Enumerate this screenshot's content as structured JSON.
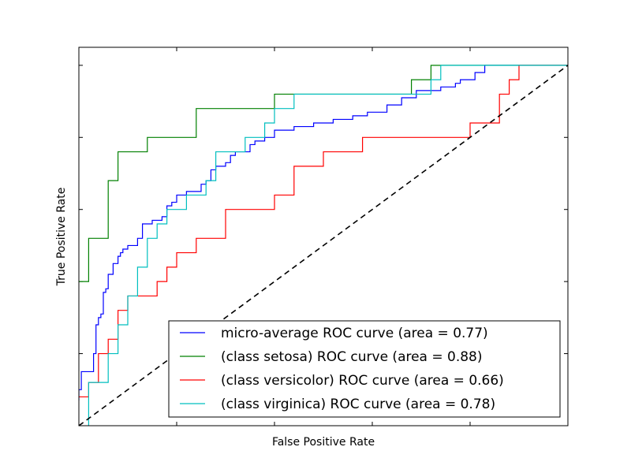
{
  "chart_data": {
    "type": "line",
    "title": "",
    "xlabel": "False Positive Rate",
    "ylabel": "True Positive Rate",
    "xlim": [
      0,
      1
    ],
    "ylim": [
      0,
      1.05
    ],
    "grid": false,
    "tick_labels_visible": false,
    "legend_position": "lower-right",
    "x_ticks": [
      0.2,
      0.4,
      0.6,
      0.8
    ],
    "y_ticks": [
      0.2,
      0.4,
      0.6,
      0.8,
      1.0
    ],
    "series": [
      {
        "name": "micro-average ROC curve (area = 0.77)",
        "color": "#0000ff",
        "points": [
          [
            0,
            0.07
          ],
          [
            0,
            0.1
          ],
          [
            0.005,
            0.1
          ],
          [
            0.005,
            0.15
          ],
          [
            0.03,
            0.15
          ],
          [
            0.03,
            0.2
          ],
          [
            0.035,
            0.2
          ],
          [
            0.035,
            0.28
          ],
          [
            0.04,
            0.28
          ],
          [
            0.04,
            0.3
          ],
          [
            0.045,
            0.3
          ],
          [
            0.045,
            0.31
          ],
          [
            0.05,
            0.31
          ],
          [
            0.05,
            0.37
          ],
          [
            0.055,
            0.37
          ],
          [
            0.055,
            0.38
          ],
          [
            0.06,
            0.38
          ],
          [
            0.06,
            0.42
          ],
          [
            0.07,
            0.42
          ],
          [
            0.07,
            0.45
          ],
          [
            0.08,
            0.45
          ],
          [
            0.08,
            0.47
          ],
          [
            0.085,
            0.47
          ],
          [
            0.085,
            0.48
          ],
          [
            0.09,
            0.48
          ],
          [
            0.09,
            0.49
          ],
          [
            0.1,
            0.49
          ],
          [
            0.1,
            0.5
          ],
          [
            0.12,
            0.5
          ],
          [
            0.12,
            0.52
          ],
          [
            0.13,
            0.52
          ],
          [
            0.13,
            0.56
          ],
          [
            0.15,
            0.56
          ],
          [
            0.15,
            0.57
          ],
          [
            0.17,
            0.57
          ],
          [
            0.17,
            0.58
          ],
          [
            0.18,
            0.58
          ],
          [
            0.18,
            0.61
          ],
          [
            0.19,
            0.61
          ],
          [
            0.19,
            0.62
          ],
          [
            0.2,
            0.62
          ],
          [
            0.2,
            0.63
          ],
          [
            0.2,
            0.64
          ],
          [
            0.22,
            0.64
          ],
          [
            0.22,
            0.65
          ],
          [
            0.25,
            0.65
          ],
          [
            0.25,
            0.67
          ],
          [
            0.26,
            0.67
          ],
          [
            0.26,
            0.68
          ],
          [
            0.27,
            0.68
          ],
          [
            0.27,
            0.71
          ],
          [
            0.28,
            0.71
          ],
          [
            0.28,
            0.72
          ],
          [
            0.3,
            0.72
          ],
          [
            0.3,
            0.73
          ],
          [
            0.31,
            0.73
          ],
          [
            0.31,
            0.75
          ],
          [
            0.32,
            0.75
          ],
          [
            0.32,
            0.76
          ],
          [
            0.35,
            0.76
          ],
          [
            0.35,
            0.78
          ],
          [
            0.36,
            0.78
          ],
          [
            0.36,
            0.79
          ],
          [
            0.38,
            0.79
          ],
          [
            0.38,
            0.8
          ],
          [
            0.4,
            0.8
          ],
          [
            0.4,
            0.82
          ],
          [
            0.44,
            0.82
          ],
          [
            0.44,
            0.83
          ],
          [
            0.48,
            0.83
          ],
          [
            0.48,
            0.84
          ],
          [
            0.52,
            0.84
          ],
          [
            0.52,
            0.85
          ],
          [
            0.56,
            0.85
          ],
          [
            0.56,
            0.86
          ],
          [
            0.59,
            0.86
          ],
          [
            0.59,
            0.87
          ],
          [
            0.63,
            0.87
          ],
          [
            0.63,
            0.89
          ],
          [
            0.66,
            0.89
          ],
          [
            0.66,
            0.91
          ],
          [
            0.69,
            0.91
          ],
          [
            0.69,
            0.93
          ],
          [
            0.74,
            0.93
          ],
          [
            0.74,
            0.94
          ],
          [
            0.77,
            0.94
          ],
          [
            0.77,
            0.95
          ],
          [
            0.78,
            0.95
          ],
          [
            0.78,
            0.96
          ],
          [
            0.81,
            0.96
          ],
          [
            0.81,
            0.98
          ],
          [
            0.83,
            0.98
          ],
          [
            0.83,
            1.0
          ],
          [
            1,
            1.0
          ]
        ]
      },
      {
        "name": "(class setosa) ROC curve (area = 0.88)",
        "color": "#008000",
        "points": [
          [
            0,
            0.4
          ],
          [
            0.02,
            0.4
          ],
          [
            0.02,
            0.52
          ],
          [
            0.06,
            0.52
          ],
          [
            0.06,
            0.68
          ],
          [
            0.08,
            0.68
          ],
          [
            0.08,
            0.76
          ],
          [
            0.14,
            0.76
          ],
          [
            0.14,
            0.8
          ],
          [
            0.24,
            0.8
          ],
          [
            0.24,
            0.88
          ],
          [
            0.4,
            0.88
          ],
          [
            0.4,
            0.92
          ],
          [
            0.68,
            0.92
          ],
          [
            0.68,
            0.96
          ],
          [
            0.72,
            0.96
          ],
          [
            0.72,
            1.0
          ],
          [
            1,
            1.0
          ]
        ]
      },
      {
        "name": "(class versicolor) ROC curve (area = 0.66)",
        "color": "#ff0000",
        "points": [
          [
            0,
            0.08
          ],
          [
            0.02,
            0.08
          ],
          [
            0.02,
            0.12
          ],
          [
            0.04,
            0.12
          ],
          [
            0.04,
            0.2
          ],
          [
            0.06,
            0.2
          ],
          [
            0.06,
            0.24
          ],
          [
            0.08,
            0.24
          ],
          [
            0.08,
            0.32
          ],
          [
            0.1,
            0.32
          ],
          [
            0.1,
            0.36
          ],
          [
            0.16,
            0.36
          ],
          [
            0.16,
            0.4
          ],
          [
            0.18,
            0.4
          ],
          [
            0.18,
            0.44
          ],
          [
            0.2,
            0.44
          ],
          [
            0.2,
            0.48
          ],
          [
            0.24,
            0.48
          ],
          [
            0.24,
            0.52
          ],
          [
            0.3,
            0.52
          ],
          [
            0.3,
            0.6
          ],
          [
            0.4,
            0.6
          ],
          [
            0.4,
            0.64
          ],
          [
            0.44,
            0.64
          ],
          [
            0.44,
            0.72
          ],
          [
            0.5,
            0.72
          ],
          [
            0.5,
            0.76
          ],
          [
            0.58,
            0.76
          ],
          [
            0.58,
            0.8
          ],
          [
            0.8,
            0.8
          ],
          [
            0.8,
            0.84
          ],
          [
            0.86,
            0.84
          ],
          [
            0.86,
            0.92
          ],
          [
            0.88,
            0.92
          ],
          [
            0.88,
            0.96
          ],
          [
            0.9,
            0.96
          ],
          [
            0.9,
            1.0
          ],
          [
            1,
            1.0
          ]
        ]
      },
      {
        "name": "(class virginica) ROC curve (area = 0.78)",
        "color": "#00bfbf",
        "points": [
          [
            0.02,
            0
          ],
          [
            0.02,
            0.12
          ],
          [
            0.06,
            0.12
          ],
          [
            0.06,
            0.2
          ],
          [
            0.08,
            0.2
          ],
          [
            0.08,
            0.28
          ],
          [
            0.1,
            0.28
          ],
          [
            0.1,
            0.36
          ],
          [
            0.12,
            0.36
          ],
          [
            0.12,
            0.44
          ],
          [
            0.14,
            0.44
          ],
          [
            0.14,
            0.52
          ],
          [
            0.16,
            0.52
          ],
          [
            0.16,
            0.56
          ],
          [
            0.18,
            0.56
          ],
          [
            0.18,
            0.6
          ],
          [
            0.22,
            0.6
          ],
          [
            0.22,
            0.64
          ],
          [
            0.26,
            0.64
          ],
          [
            0.26,
            0.68
          ],
          [
            0.28,
            0.68
          ],
          [
            0.28,
            0.76
          ],
          [
            0.34,
            0.76
          ],
          [
            0.34,
            0.8
          ],
          [
            0.38,
            0.8
          ],
          [
            0.38,
            0.84
          ],
          [
            0.4,
            0.84
          ],
          [
            0.4,
            0.88
          ],
          [
            0.44,
            0.88
          ],
          [
            0.44,
            0.92
          ],
          [
            0.72,
            0.92
          ],
          [
            0.72,
            0.96
          ],
          [
            0.74,
            0.96
          ],
          [
            0.74,
            1.0
          ],
          [
            1,
            1.0
          ]
        ]
      },
      {
        "name": "",
        "color": "#000000",
        "dashed": true,
        "points": [
          [
            0,
            0
          ],
          [
            1,
            1.0
          ]
        ]
      }
    ]
  }
}
